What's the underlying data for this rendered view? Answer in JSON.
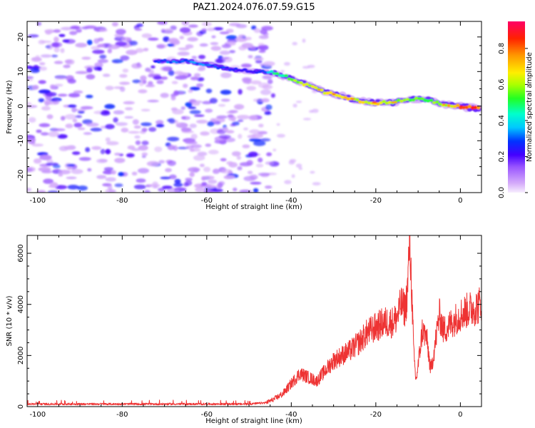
{
  "title": "PAZ1.2024.076.07.59.G15",
  "chart_data": [
    {
      "type": "heatmap",
      "xlabel": "Height of straight line (km)",
      "ylabel": "Frequency (Hz)",
      "xlim": [
        -102.5,
        5
      ],
      "ylim": [
        -25,
        24.5
      ],
      "x_ticks": [
        -100,
        -80,
        -60,
        -40,
        -20,
        0
      ],
      "y_ticks": [
        -20,
        -10,
        0,
        10,
        20
      ],
      "colorbar": {
        "label": "Normalized spectral amplitude",
        "range": [
          0,
          0.95
        ],
        "ticks": [
          0.0,
          0.2,
          0.4,
          0.6,
          0.8
        ],
        "colormap": "gist_rainbow_r"
      },
      "ridge": {
        "description": "main signal trace",
        "x": [
          -72,
          -68,
          -64,
          -60,
          -56,
          -50,
          -46,
          -44,
          -40,
          -36,
          -32,
          -28,
          -24,
          -20,
          -16,
          -12,
          -8,
          -4,
          0,
          5
        ],
        "y": [
          13,
          13,
          13,
          12,
          11,
          10,
          10,
          9.5,
          8,
          6,
          4,
          3,
          1.5,
          1,
          1,
          2,
          2,
          0.5,
          0,
          -1
        ],
        "amplitude": [
          0.3,
          0.35,
          0.35,
          0.35,
          0.3,
          0.25,
          0.35,
          0.5,
          0.6,
          0.7,
          0.7,
          0.75,
          0.7,
          0.75,
          0.7,
          0.6,
          0.6,
          0.7,
          0.85,
          0.9
        ]
      },
      "noise_region": {
        "x": [
          -102.5,
          -44
        ],
        "y": [
          -25,
          24.5
        ],
        "amplitude": [
          0.05,
          0.3
        ]
      }
    },
    {
      "type": "line",
      "xlabel": "Height of straight line (km)",
      "ylabel": "SNR (10 * v/v)",
      "xlim": [
        -102.5,
        5
      ],
      "ylim": [
        0,
        6700
      ],
      "x_ticks": [
        -100,
        -80,
        -60,
        -40,
        -20,
        0
      ],
      "y_ticks": [
        0,
        2000,
        4000,
        6000
      ],
      "series": [
        {
          "color": "#ee3333",
          "x": [
            -102.5,
            -90,
            -80,
            -70,
            -60,
            -50,
            -46,
            -44,
            -42,
            -40,
            -38,
            -36,
            -34,
            -32,
            -30,
            -28,
            -26,
            -24,
            -22,
            -20,
            -18,
            -16,
            -15,
            -14,
            -13,
            -12.5,
            -12,
            -11.5,
            -11,
            -10.5,
            -10,
            -9,
            -8,
            -7,
            -6,
            -5,
            -4,
            -3,
            -2,
            0,
            2,
            4,
            5
          ],
          "y": [
            100,
            100,
            100,
            100,
            100,
            100,
            150,
            300,
            500,
            900,
            1300,
            1150,
            1000,
            1400,
            1800,
            2000,
            2200,
            2500,
            2900,
            3100,
            3300,
            3300,
            3500,
            4000,
            3800,
            4600,
            6650,
            4500,
            2000,
            1000,
            1600,
            3000,
            2700,
            1400,
            2400,
            3600,
            3000,
            3100,
            3300,
            3600,
            3800,
            3900,
            4100
          ]
        }
      ]
    }
  ]
}
